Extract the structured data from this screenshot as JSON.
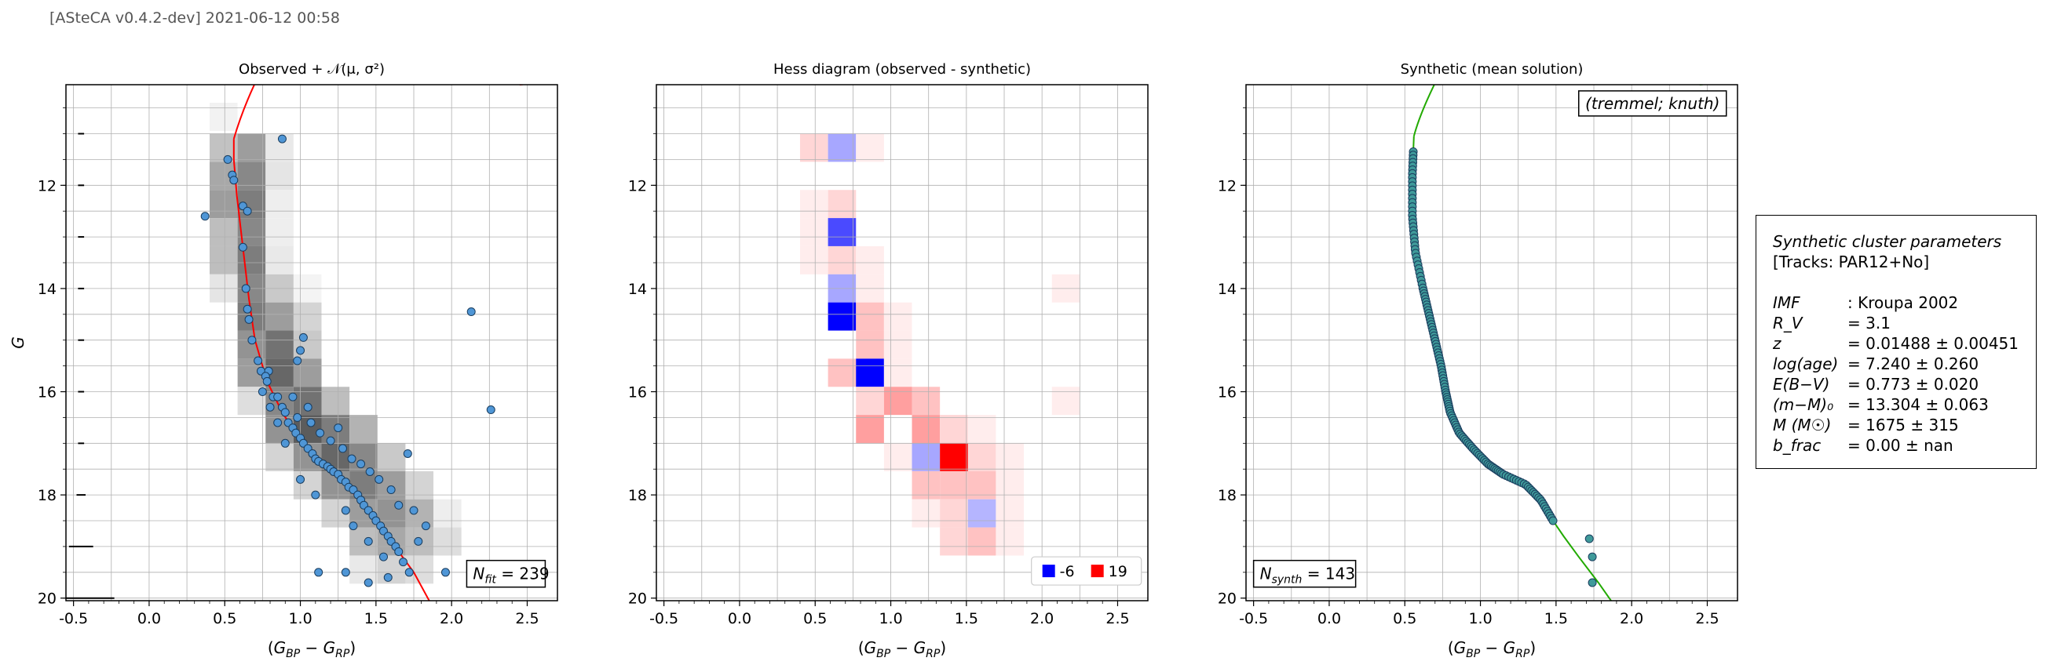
{
  "header": "[ASteCA v0.4.2-dev] 2021-06-12 00:58",
  "panels": [
    {
      "title": "Observed + 𝒩(μ, σ²)"
    },
    {
      "title": "Hess diagram (observed - synthetic)"
    },
    {
      "title": "Synthetic (mean solution)"
    }
  ],
  "annotations": {
    "nfit": "N_fit = 239",
    "nsynth": "N_synth = 143",
    "method": "(tremmel; knuth)",
    "legend_neg": "-6",
    "legend_pos": "19"
  },
  "params": {
    "title": "Synthetic cluster parameters",
    "tracks": "[Tracks: PAR12+No]",
    "rows": [
      {
        "label": "IMF",
        "sep": ":",
        "value": "Kroupa 2002"
      },
      {
        "label": "R_V",
        "sep": "=",
        "value": "3.1"
      },
      {
        "label": "z",
        "sep": "=",
        "value": "0.01488 ± 0.00451"
      },
      {
        "label": "log(age)",
        "sep": "=",
        "value": "7.240 ± 0.260"
      },
      {
        "label": "E(B−V)",
        "sep": "=",
        "value": "0.773 ± 0.020"
      },
      {
        "label": "(m−M)₀",
        "sep": "=",
        "value": "13.304 ± 0.063"
      },
      {
        "label": "M (M☉)",
        "sep": "=",
        "value": "1675 ± 315"
      },
      {
        "label": "b_frac",
        "sep": "=",
        "value": "0.00 ± nan"
      }
    ]
  },
  "colors": {
    "points": "#4f96d6",
    "isochrone_obs": "#ff0000",
    "isochrone_synth": "#22aa00",
    "hess_pos": "#ff0000",
    "hess_neg": "#0000ff"
  },
  "chart_data": [
    {
      "type": "scatter",
      "title": "Observed + 𝒩(μ, σ²)",
      "xlabel": "(G_BP − G_RP)",
      "ylabel": "G",
      "xlim": [
        -0.55,
        2.7
      ],
      "ylim": [
        20.05,
        10.05
      ],
      "y_inverted": true,
      "xticks": [
        "-0.5",
        "0.0",
        "0.5",
        "1.0",
        "1.5",
        "2.0",
        "2.5"
      ],
      "yticks": [
        "12",
        "14",
        "16",
        "18",
        "20"
      ],
      "grid": true,
      "points_approx": [
        [
          0.37,
          12.6
        ],
        [
          0.52,
          11.5
        ],
        [
          0.55,
          11.8
        ],
        [
          0.56,
          11.9
        ],
        [
          0.88,
          11.1
        ],
        [
          0.62,
          12.4
        ],
        [
          0.65,
          12.5
        ],
        [
          0.62,
          13.2
        ],
        [
          0.64,
          14.0
        ],
        [
          0.65,
          14.4
        ],
        [
          0.66,
          14.6
        ],
        [
          2.13,
          14.45
        ],
        [
          2.26,
          16.35
        ],
        [
          0.68,
          15.0
        ],
        [
          0.72,
          15.4
        ],
        [
          0.74,
          15.6
        ],
        [
          0.79,
          15.6
        ],
        [
          1.02,
          14.95
        ],
        [
          1.0,
          15.2
        ],
        [
          0.98,
          15.4
        ],
        [
          0.77,
          15.7
        ],
        [
          0.78,
          15.8
        ],
        [
          0.75,
          16.0
        ],
        [
          0.82,
          16.1
        ],
        [
          0.85,
          16.1
        ],
        [
          0.88,
          16.3
        ],
        [
          0.9,
          16.4
        ],
        [
          0.92,
          16.6
        ],
        [
          0.95,
          16.7
        ],
        [
          0.97,
          16.8
        ],
        [
          1.0,
          16.9
        ],
        [
          1.02,
          17.0
        ],
        [
          1.05,
          17.1
        ],
        [
          1.08,
          17.2
        ],
        [
          1.1,
          17.3
        ],
        [
          1.12,
          17.35
        ],
        [
          1.15,
          17.4
        ],
        [
          1.18,
          17.45
        ],
        [
          1.2,
          17.5
        ],
        [
          1.22,
          17.55
        ],
        [
          1.25,
          17.6
        ],
        [
          1.27,
          17.7
        ],
        [
          1.3,
          17.75
        ],
        [
          1.32,
          17.85
        ],
        [
          1.35,
          17.9
        ],
        [
          1.38,
          18.0
        ],
        [
          1.4,
          18.1
        ],
        [
          1.42,
          18.2
        ],
        [
          1.45,
          18.3
        ],
        [
          1.48,
          18.4
        ],
        [
          1.5,
          18.5
        ],
        [
          1.53,
          18.6
        ],
        [
          1.55,
          18.7
        ],
        [
          1.58,
          18.8
        ],
        [
          1.6,
          18.9
        ],
        [
          1.63,
          19.0
        ],
        [
          1.65,
          19.1
        ],
        [
          1.68,
          19.3
        ],
        [
          1.72,
          19.5
        ],
        [
          1.58,
          19.6
        ],
        [
          1.45,
          19.7
        ],
        [
          1.3,
          19.5
        ],
        [
          1.12,
          19.5
        ],
        [
          1.96,
          19.5
        ],
        [
          1.71,
          17.2
        ],
        [
          1.83,
          18.6
        ],
        [
          1.78,
          18.9
        ],
        [
          1.25,
          16.7
        ],
        [
          0.98,
          16.5
        ],
        [
          1.07,
          16.6
        ],
        [
          1.13,
          16.8
        ],
        [
          1.2,
          16.95
        ],
        [
          1.28,
          17.1
        ],
        [
          1.34,
          17.3
        ],
        [
          1.4,
          17.4
        ],
        [
          1.46,
          17.55
        ],
        [
          1.52,
          17.7
        ],
        [
          1.6,
          17.9
        ],
        [
          1.1,
          18.0
        ],
        [
          1.0,
          17.7
        ],
        [
          1.3,
          18.3
        ],
        [
          1.35,
          18.6
        ],
        [
          1.45,
          18.9
        ],
        [
          1.55,
          19.2
        ],
        [
          1.65,
          18.2
        ],
        [
          1.75,
          18.3
        ],
        [
          0.9,
          17.0
        ],
        [
          0.85,
          16.6
        ],
        [
          0.8,
          16.3
        ],
        [
          0.95,
          16.1
        ],
        [
          1.05,
          16.3
        ]
      ],
      "isochrone": "red curve from (0.55,11.1) bending to (0.68,15.0), (0.95,16.6), (1.4,18.2), (1.85,20.0)",
      "heatmap": "grey density bins behind the points"
    },
    {
      "type": "heatmap",
      "title": "Hess diagram (observed - synthetic)",
      "xlabel": "(G_BP − G_RP)",
      "xlim": [
        -0.55,
        2.7
      ],
      "ylim": [
        20.05,
        10.05
      ],
      "xticks": [
        "-0.5",
        "0.0",
        "0.5",
        "1.0",
        "1.5",
        "2.0",
        "2.5"
      ],
      "yticks": [
        "12",
        "14",
        "16",
        "18",
        "20"
      ],
      "colorscale": {
        "min": -6,
        "max": 19
      },
      "x_edges_note": "bins of width 0.185 starting at 0.4; rows of height 0.545 starting at 11.0",
      "cells": [
        [
          0.4,
          11.0,
          2
        ],
        [
          0.585,
          11.0,
          -3
        ],
        [
          0.77,
          11.0,
          1
        ],
        [
          0.4,
          12.09,
          1
        ],
        [
          0.585,
          12.09,
          2
        ],
        [
          0.4,
          12.635,
          1
        ],
        [
          0.585,
          12.635,
          -5
        ],
        [
          0.4,
          13.18,
          1
        ],
        [
          0.585,
          13.18,
          2
        ],
        [
          0.77,
          13.18,
          1
        ],
        [
          0.585,
          13.725,
          -3
        ],
        [
          0.77,
          13.725,
          1
        ],
        [
          2.065,
          13.725,
          1
        ],
        [
          0.585,
          14.27,
          -6
        ],
        [
          0.77,
          14.27,
          3
        ],
        [
          0.955,
          14.27,
          1
        ],
        [
          0.77,
          14.815,
          4
        ],
        [
          0.955,
          14.815,
          1
        ],
        [
          0.585,
          15.36,
          4
        ],
        [
          0.77,
          15.36,
          -6
        ],
        [
          0.955,
          15.36,
          1
        ],
        [
          0.77,
          15.905,
          2
        ],
        [
          0.955,
          15.905,
          6
        ],
        [
          1.14,
          15.905,
          3
        ],
        [
          2.065,
          15.905,
          1
        ],
        [
          0.77,
          16.45,
          5
        ],
        [
          1.14,
          16.45,
          7
        ],
        [
          1.325,
          16.45,
          2
        ],
        [
          1.51,
          16.45,
          1
        ],
        [
          0.955,
          16.995,
          1
        ],
        [
          1.14,
          16.995,
          -4
        ],
        [
          1.325,
          16.995,
          19
        ],
        [
          1.51,
          16.995,
          2
        ],
        [
          1.695,
          16.995,
          1
        ],
        [
          1.14,
          17.54,
          3
        ],
        [
          1.325,
          17.54,
          4
        ],
        [
          1.51,
          17.54,
          3
        ],
        [
          1.695,
          17.54,
          1
        ],
        [
          1.14,
          18.085,
          1
        ],
        [
          1.325,
          18.085,
          2
        ],
        [
          1.51,
          18.085,
          -2
        ],
        [
          1.695,
          18.085,
          1
        ],
        [
          1.325,
          18.63,
          2
        ],
        [
          1.51,
          18.63,
          3
        ],
        [
          1.695,
          18.63,
          1
        ]
      ]
    },
    {
      "type": "scatter",
      "title": "Synthetic (mean solution)",
      "xlabel": "(G_BP − G_RP)",
      "xlim": [
        -0.55,
        2.7
      ],
      "ylim": [
        20.05,
        10.05
      ],
      "xticks": [
        "-0.5",
        "0.0",
        "0.5",
        "1.0",
        "1.5",
        "2.0",
        "2.5"
      ],
      "yticks": [
        "12",
        "14",
        "16",
        "18",
        "20"
      ],
      "grid": true
    }
  ]
}
